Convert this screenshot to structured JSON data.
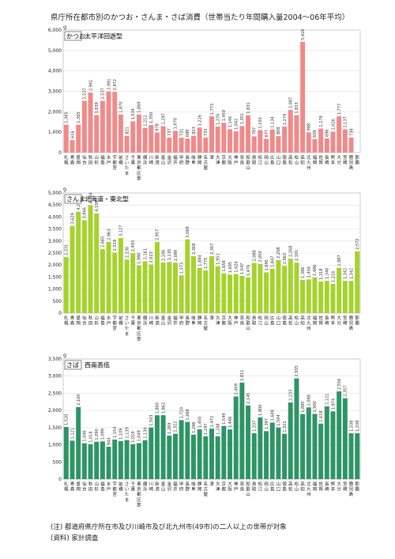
{
  "page": {
    "title": "県庁所在都市別のかつお・さんま・さば消費（世帯当たり年間購入量2004～06年平均）"
  },
  "notes": {
    "note": "(注) 都道府県庁所在市及び川崎市及び北九州市(49市)の二人以上の世帯が対象",
    "source": "(資料) 家計調査"
  },
  "cities": [
    "札幌",
    "青森",
    "盛岡",
    "仙台",
    "秋田",
    "山形",
    "福島",
    "水戸",
    "宇都宮",
    "前橋",
    "さいたま",
    "千葉",
    "東京都区部",
    "横浜",
    "川崎",
    "新潟",
    "富山",
    "金沢",
    "福井",
    "甲府",
    "長野",
    "岐阜",
    "静岡",
    "名古屋",
    "津",
    "大津",
    "京都",
    "大阪",
    "神戸",
    "奈良",
    "和歌山",
    "鳥取",
    "松江",
    "岡山",
    "広島",
    "山口",
    "徳島",
    "高松",
    "松山",
    "高知",
    "北九州",
    "福岡",
    "佐賀",
    "長崎",
    "熊本",
    "大分",
    "宮崎",
    "鹿児島",
    "那覇"
  ],
  "chart_data": [
    {
      "type": "bar",
      "fish": "かつお",
      "subtitle": "太平洋回遊型",
      "unit": "g",
      "color": "#f08a8a",
      "ylim": [
        0,
        6000
      ],
      "yticks": [
        0,
        1000,
        2000,
        3000,
        4000,
        5000,
        6000
      ],
      "values": [
        1365,
        616,
        1365,
        2537,
        2941,
        1839,
        2537,
        2991,
        2972,
        1870,
        821,
        1534,
        1869,
        1211,
        1350,
        978,
        1297,
        737,
        1070,
        731,
        689,
        823,
        1226,
        733,
        1773,
        1276,
        1459,
        1146,
        1042,
        1301,
        1831,
        797,
        1103,
        677,
        1134,
        808,
        1274,
        2087,
        1833,
        5426,
        988,
        659,
        1178,
        696,
        1026,
        1777,
        1137,
        738,
        0
      ]
    },
    {
      "type": "bar",
      "fish": "さんま",
      "subtitle": "北海道・東北型",
      "unit": "g",
      "color": "#a6d22e",
      "ylim": [
        0,
        5000
      ],
      "yticks": [
        0,
        500,
        1000,
        1500,
        2000,
        2500,
        3000,
        3500,
        4000,
        4500,
        5000
      ],
      "values": [
        2331,
        3629,
        4216,
        3866,
        4484,
        4150,
        2665,
        2963,
        2519,
        3127,
        2230,
        2493,
        1980,
        2161,
        2023,
        2957,
        2106,
        2130,
        2099,
        1573,
        3069,
        2368,
        1884,
        1775,
        2367,
        1951,
        1658,
        1605,
        1626,
        1547,
        1476,
        2088,
        2050,
        1695,
        1847,
        2208,
        1963,
        2268,
        2101,
        1386,
        1404,
        1486,
        1318,
        1346,
        1216,
        1887,
        1342,
        1342,
        2572
      ]
    },
    {
      "type": "bar",
      "fish": "さば",
      "subtitle": "西南高低",
      "unit": "g",
      "color": "#2e9466",
      "ylim": [
        0,
        3500
      ],
      "yticks": [
        0,
        500,
        1000,
        1500,
        2000,
        2500,
        3000,
        3500
      ],
      "values": [
        1520,
        1121,
        2100,
        1046,
        1018,
        1090,
        1099,
        944,
        1154,
        1109,
        1139,
        1019,
        1049,
        1134,
        1503,
        1860,
        1862,
        1269,
        1322,
        1720,
        1668,
        1296,
        1450,
        1247,
        1472,
        1248,
        1549,
        1448,
        2409,
        2811,
        2145,
        1337,
        1800,
        1397,
        1648,
        1504,
        1322,
        2233,
        2935,
        1895,
        2088,
        1900,
        1618,
        2121,
        1974,
        2556,
        2357,
        1338,
        1338
      ]
    }
  ]
}
